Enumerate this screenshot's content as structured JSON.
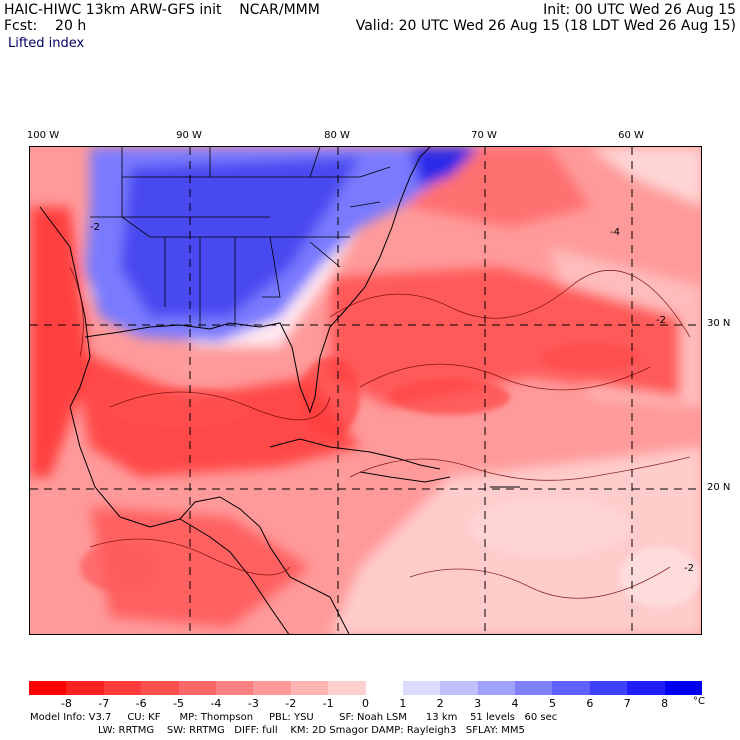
{
  "header": {
    "title": "HAIC-HIWC 13km ARW-GFS init    NCAR/MMM",
    "forecast": "Fcst:    20 h",
    "init": "Init: 00 UTC Wed 26 Aug 15",
    "valid": "Valid: 20 UTC Wed 26 Aug 15 (18 LDT Wed 26 Aug 15)",
    "field": "Lifted index"
  },
  "axes": {
    "longitudes": [
      "100 W",
      "90 W",
      "80 W",
      "70 W",
      "60 W"
    ],
    "latitudes": [
      "30 N",
      "20 N"
    ]
  },
  "contour_labels": [
    "-2",
    "-4",
    "-2",
    "-2"
  ],
  "colorbar": {
    "unit": "°C",
    "tick_labels": [
      "-8",
      "-7",
      "-6",
      "-5",
      "-4",
      "-3",
      "-2",
      "-1",
      "0",
      "1",
      "2",
      "3",
      "4",
      "5",
      "6",
      "7",
      "8"
    ],
    "colors": [
      "#ff0000",
      "#ff2020",
      "#ff3a3a",
      "#ff5050",
      "#ff6868",
      "#ff8080",
      "#ff9a9a",
      "#ffb4b4",
      "#ffd0d0",
      "#ffffff",
      "#dcdcff",
      "#c0c0ff",
      "#a0a0ff",
      "#8080ff",
      "#6060ff",
      "#4040ff",
      "#2020ff",
      "#0000f0"
    ]
  },
  "footer": {
    "line1": "Model Info: V3.7     CU: KF      MP: Thompson     PBL: YSU        SF: Noah LSM      13 km    51 levels   60 sec",
    "line2": "LW: RRTMG    SW: RRTMG   DIFF: full    KM: 2D Smagor DAMP: Rayleigh3   SFLAY: MM5"
  }
}
